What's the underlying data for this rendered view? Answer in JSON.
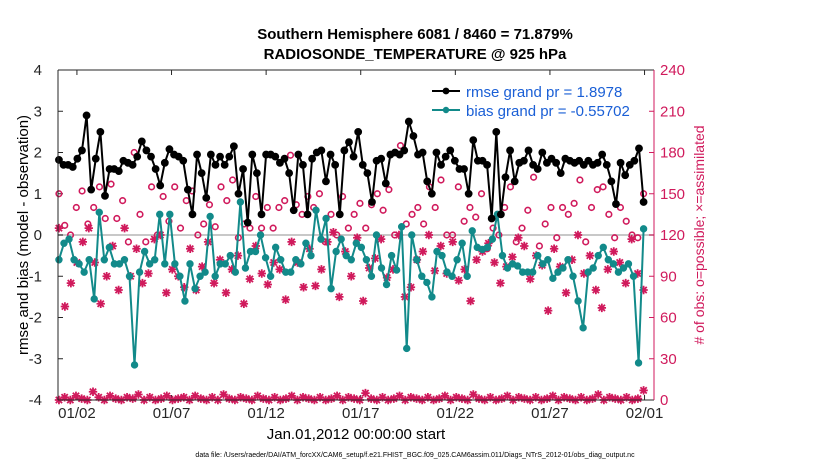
{
  "chart_data": {
    "type": "line",
    "title_line1": "Southern Hemisphere 6081 / 8460 = 71.879%",
    "title_line2": "RADIOSONDE_TEMPERATURE @ 925 hPa",
    "xlabel": "Jan.01,2012 00:00:00 start",
    "ylabel_left": "rmse and bias (model - observation)",
    "ylabel_right": "# of obs: o=possible; ×=assimilated",
    "ylim_left": [
      -4,
      4
    ],
    "ylim_right": [
      0,
      240
    ],
    "xlim_days": [
      0,
      31.5
    ],
    "yticks_left": [
      "4",
      "3",
      "2",
      "1",
      "0",
      "-1",
      "-2",
      "-3",
      "-4"
    ],
    "yticks_right": [
      "240",
      "210",
      "180",
      "150",
      "120",
      "90",
      "60",
      "30",
      "0"
    ],
    "xticks": [
      {
        "day": 1,
        "label": "01/02"
      },
      {
        "day": 6,
        "label": "01/07"
      },
      {
        "day": 11,
        "label": "01/12"
      },
      {
        "day": 16,
        "label": "01/17"
      },
      {
        "day": 21,
        "label": "01/22"
      },
      {
        "day": 26,
        "label": "01/27"
      },
      {
        "day": 31,
        "label": "02/01"
      }
    ],
    "legend": {
      "rmse": "rmse grand pr = 1.8978",
      "bias": "bias grand pr = -0.55702"
    },
    "series": [
      {
        "name": "rmse",
        "color": "#000000",
        "values": [
          1.82,
          1.7,
          1.7,
          1.65,
          1.85,
          2.05,
          2.9,
          1.1,
          1.85,
          2.5,
          0.95,
          1.6,
          1.6,
          1.55,
          1.8,
          1.75,
          1.7,
          1.9,
          2.27,
          2.05,
          1.9,
          1.6,
          1.2,
          1.75,
          2.08,
          1.95,
          1.9,
          1.8,
          1.1,
          0.5,
          1.95,
          1.5,
          0.9,
          1.95,
          1.7,
          1.9,
          1.7,
          1.9,
          2.15,
          1.0,
          1.6,
          0.3,
          1.95,
          1.5,
          0.5,
          1.95,
          1.95,
          1.9,
          1.75,
          1.85,
          1.5,
          0.6,
          1.95,
          1.7,
          0.5,
          1.85,
          2.0,
          2.05,
          1.3,
          1.95,
          1.7,
          0.5,
          2.05,
          2.25,
          1.9,
          2.5,
          1.7,
          1.5,
          0.8,
          1.8,
          1.85,
          1.25,
          1.95,
          2.0,
          1.95,
          2.05,
          2.75,
          2.4,
          1.95,
          2.0,
          1.3,
          1.0,
          2.0,
          1.7,
          1.9,
          2.05,
          1.8,
          1.6,
          1.6,
          1.0,
          2.3,
          1.8,
          1.8,
          1.7,
          0.4,
          2.5,
          0.5,
          1.4,
          2.05,
          1.3,
          1.75,
          1.8,
          2.05,
          1.7,
          1.6,
          2.0,
          1.75,
          1.85,
          1.75,
          1.5,
          1.85,
          1.8,
          1.75,
          1.8,
          1.7,
          1.8,
          1.7,
          1.75,
          1.95,
          1.7,
          1.3,
          0.75,
          1.75,
          1.45,
          1.7,
          1.8,
          2.1,
          0.8
        ],
        "markers_only_hidden": false
      },
      {
        "name": "bias",
        "color": "#128a8a",
        "values": [
          -0.6,
          -0.2,
          -0.1,
          -0.6,
          -0.7,
          -0.9,
          -0.6,
          -1.55,
          0.55,
          -0.6,
          -0.3,
          -0.7,
          -0.7,
          -0.6,
          -1.0,
          -3.15,
          -0.9,
          -0.4,
          -0.7,
          -0.6,
          0.5,
          -0.7,
          0.5,
          -0.7,
          -1.0,
          -1.6,
          -0.7,
          -1.3,
          -1.0,
          -0.9,
          0.45,
          -1.0,
          -0.7,
          -0.7,
          -0.5,
          -0.9,
          0.8,
          -0.8,
          -0.4,
          -0.4,
          0.0,
          -0.55,
          -1.0,
          -0.3,
          -0.6,
          -0.9,
          -0.9,
          -0.6,
          -0.7,
          -0.2,
          -0.5,
          0.6,
          -0.1,
          0.4,
          -1.3,
          -0.4,
          -0.1,
          -0.5,
          -0.6,
          -0.2,
          -0.3,
          -0.6,
          -1.0,
          0.0,
          -0.8,
          -1.2,
          -0.5,
          -0.85,
          0.2,
          -2.75,
          0.0,
          -0.6,
          -1.0,
          -1.15,
          -1.5,
          -0.4,
          -0.5,
          -0.9,
          -1.0,
          -0.6,
          -0.2,
          -1.0,
          0.1,
          -0.3,
          -0.35,
          -0.3,
          -0.1,
          0.5,
          -0.5,
          -0.8,
          -0.7,
          -0.75,
          -0.9,
          -0.9,
          -0.9,
          -0.5,
          -0.7,
          -0.6,
          -1.05,
          -0.9,
          -0.8,
          -0.6,
          -1.0,
          -1.6,
          -2.25,
          -0.9,
          -0.8,
          -0.5,
          -0.3,
          -0.6,
          -0.7,
          -0.9,
          -0.8,
          -0.7,
          -1.0,
          -3.1,
          0.15
        ],
        "markers_only_hidden": false
      },
      {
        "name": "obs_possible",
        "color": "#d01a5c",
        "axis": "right",
        "values": [
          150,
          127,
          120,
          140,
          152,
          128,
          140,
          155,
          132,
          157,
          132,
          145,
          115,
          180,
          135,
          115,
          155,
          120,
          148,
          130,
          155,
          125,
          145,
          152,
          120,
          128,
          142,
          126,
          155,
          145,
          160,
          118,
          128,
          125,
          148,
          125,
          140,
          125,
          140,
          145,
          178,
          142,
          135,
          148,
          140,
          150,
          115,
          135,
          120,
          148,
          125,
          135,
          143,
          125,
          142,
          150,
          138,
          153,
          120,
          185,
          128,
          135,
          140,
          128,
          155,
          140,
          160,
          120,
          120,
          155,
          130,
          140,
          133,
          150,
          110,
          125,
          120,
          140,
          155,
          115,
          125,
          138,
          162,
          112,
          128,
          140,
          118,
          140,
          135,
          143,
          160,
          115,
          140,
          153,
          155,
          135,
          118,
          140,
          130,
          120,
          118,
          150
        ],
        "markers_only_hidden": true
      },
      {
        "name": "obs_assimilated",
        "color": "#d01a5c",
        "axis": "right",
        "values": [
          125,
          68,
          85,
          100,
          115,
          125,
          100,
          70,
          90,
          112,
          80,
          125,
          90,
          110,
          85,
          92,
          117,
          120,
          78,
          95,
          90,
          82,
          110,
          80,
          97,
          115,
          85,
          102,
          78,
          95,
          105,
          70,
          88,
          112,
          92,
          84,
          100,
          95,
          73,
          115,
          100,
          82,
          110,
          83,
          95,
          115,
          122,
          75,
          108,
          90,
          118,
          72,
          96,
          103,
          117,
          89,
          95,
          120,
          75,
          82,
          102,
          108,
          120,
          94,
          112,
          92,
          115,
          87,
          95,
          72,
          102,
          108,
          114,
          100,
          85,
          97,
          104,
          118,
          112,
          88,
          105,
          98,
          65,
          110,
          97,
          78,
          102,
          120,
          92,
          105,
          80,
          67,
          95,
          108,
          100,
          85,
          117,
          92,
          80
        ],
        "markers_only_hidden": true
      },
      {
        "name": "obs_zero_line",
        "color": "#d01a5c",
        "axis": "right",
        "values": [
          0,
          2,
          0,
          3,
          1,
          0,
          6,
          2,
          0,
          3,
          1,
          0,
          2,
          1,
          4,
          0,
          2,
          0,
          1,
          3,
          0,
          1,
          2,
          0,
          3,
          1,
          0,
          2,
          0,
          4,
          1,
          0,
          2,
          1,
          0,
          3,
          1,
          0,
          2,
          0,
          1,
          3,
          0,
          2,
          1,
          0,
          2,
          0,
          1,
          3,
          0,
          2,
          1,
          0,
          5,
          1,
          0,
          2,
          0,
          1,
          3,
          0,
          2,
          1,
          0,
          2,
          0,
          1,
          3,
          0,
          2,
          1,
          0,
          4,
          1,
          0,
          2,
          0,
          1,
          3,
          0,
          2,
          1,
          0,
          2,
          0,
          1,
          3,
          0,
          2,
          1,
          0,
          2,
          0,
          1,
          4,
          0,
          2,
          1,
          0,
          2,
          0,
          1,
          7
        ],
        "markers_only_hidden": true
      }
    ]
  },
  "footnote": "data file: /Users/raeder/DAI/ATM_forcXX/CAM6_setup/f.e21.FHIST_BGC.f09_025.CAM6assim.011/Diags_NTrS_2012-01/obs_diag_output.nc"
}
